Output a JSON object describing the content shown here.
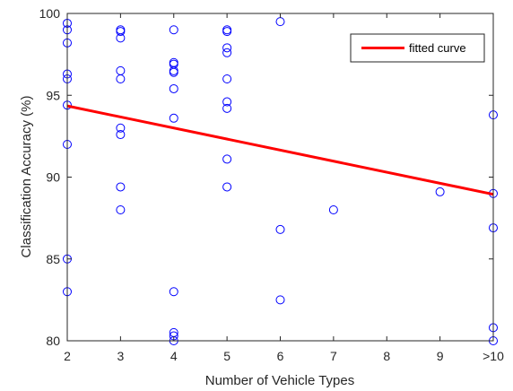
{
  "chart_data": {
    "type": "scatter",
    "title": "",
    "xlabel": "Number of Vehicle Types",
    "ylabel": "Classification Accuracy (%)",
    "xlim": [
      2,
      10
    ],
    "ylim": [
      80,
      100
    ],
    "x_ticks": [
      2,
      3,
      4,
      5,
      6,
      7,
      8,
      9,
      10
    ],
    "x_tick_labels": [
      "2",
      "3",
      "4",
      "5",
      "6",
      "7",
      "8",
      "9",
      ">10"
    ],
    "y_ticks": [
      80,
      85,
      90,
      95,
      100
    ],
    "y_tick_labels": [
      "80",
      "85",
      "90",
      "95",
      "100"
    ],
    "grid": false,
    "box": true,
    "legend_position": "top-right",
    "series": [
      {
        "type": "scatter",
        "marker": "circle-open",
        "color": "#0000ff",
        "points": [
          [
            2,
            99.4
          ],
          [
            2,
            99.0
          ],
          [
            2,
            98.2
          ],
          [
            2,
            96.3
          ],
          [
            2,
            96.0
          ],
          [
            2,
            94.4
          ],
          [
            2,
            92.0
          ],
          [
            2,
            85.0
          ],
          [
            2,
            83.0
          ],
          [
            3,
            99.0
          ],
          [
            3,
            98.9
          ],
          [
            3,
            98.5
          ],
          [
            3,
            96.5
          ],
          [
            3,
            96.0
          ],
          [
            3,
            93.0
          ],
          [
            3,
            92.6
          ],
          [
            3,
            89.4
          ],
          [
            3,
            88.0
          ],
          [
            4,
            99.0
          ],
          [
            4,
            97.0
          ],
          [
            4,
            96.9
          ],
          [
            4,
            96.5
          ],
          [
            4,
            96.4
          ],
          [
            4,
            95.4
          ],
          [
            4,
            93.6
          ],
          [
            4,
            83.0
          ],
          [
            4,
            80.5
          ],
          [
            4,
            80.3
          ],
          [
            4,
            80.0
          ],
          [
            5,
            99.0
          ],
          [
            5,
            98.9
          ],
          [
            5,
            97.9
          ],
          [
            5,
            97.6
          ],
          [
            5,
            96.0
          ],
          [
            5,
            94.6
          ],
          [
            5,
            94.2
          ],
          [
            5,
            91.1
          ],
          [
            5,
            89.4
          ],
          [
            6,
            99.5
          ],
          [
            6,
            86.8
          ],
          [
            6,
            82.5
          ],
          [
            7,
            88.0
          ],
          [
            9,
            89.1
          ],
          [
            10,
            93.8
          ],
          [
            10,
            89.0
          ],
          [
            10,
            86.9
          ],
          [
            10,
            80.8
          ],
          [
            10,
            80.0
          ]
        ]
      },
      {
        "name": "fitted curve",
        "type": "line",
        "color": "#ff0000",
        "x": [
          2,
          10
        ],
        "y": [
          94.35,
          88.95
        ]
      }
    ]
  }
}
